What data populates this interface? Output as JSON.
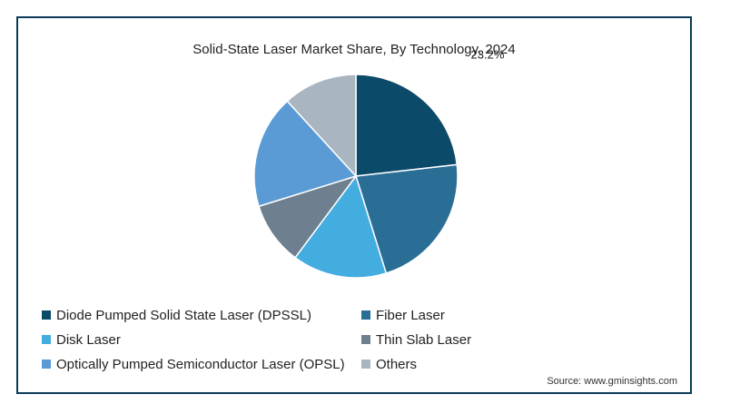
{
  "source": "Source: www.gminsights.com",
  "colors": {
    "frame": "#0b3a57",
    "slice_border": "#ffffff"
  },
  "chart_data": {
    "type": "pie",
    "title": "Solid-State Laser Market Share, By Technology, 2024",
    "legend_placement": "bottom-left",
    "slices": [
      {
        "label": "Diode Pumped Solid State Laser (DPSSL)",
        "value": 23.2,
        "color": "#0b4a68",
        "data_label": "23.2%"
      },
      {
        "label": "Fiber Laser",
        "value": 22.0,
        "color": "#2a6e96",
        "data_label": ""
      },
      {
        "label": "Disk Laser",
        "value": 15.0,
        "color": "#43ade0",
        "data_label": ""
      },
      {
        "label": "Thin Slab Laser",
        "value": 10.0,
        "color": "#6e7f90",
        "data_label": ""
      },
      {
        "label": "Optically Pumped Semiconductor Laser (OPSL)",
        "value": 18.0,
        "color": "#5b9bd5",
        "data_label": ""
      },
      {
        "label": "Others",
        "value": 11.8,
        "color": "#a9b5c0",
        "data_label": ""
      }
    ]
  }
}
